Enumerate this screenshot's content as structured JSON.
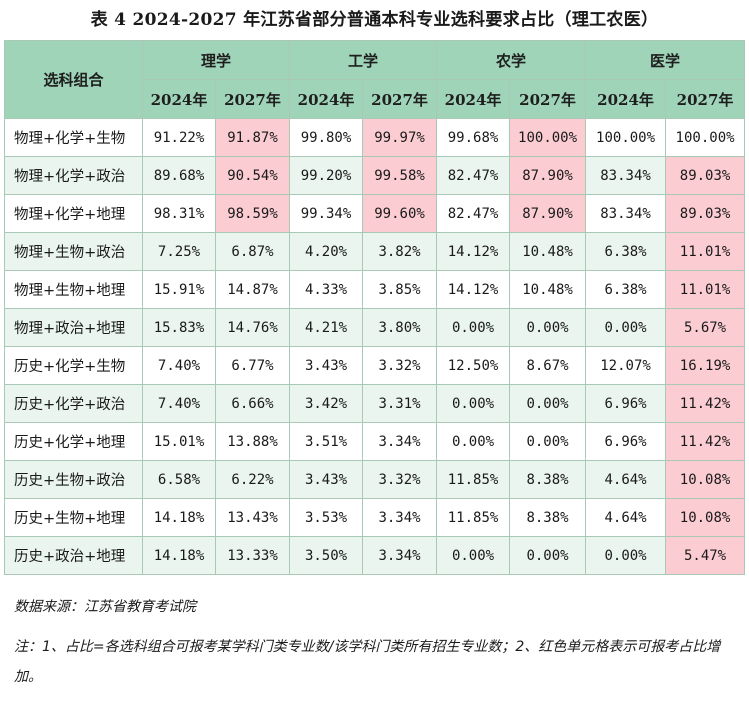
{
  "title": "表 4  2024-2027 年江苏省部分普通本科专业选科要求占比（理工农医）",
  "header": {
    "row_label": "选科组合",
    "groups": [
      "理学",
      "工学",
      "农学",
      "医学"
    ],
    "years": [
      "2024年",
      "2027年"
    ]
  },
  "rows": [
    {
      "label": "物理+化学+生物",
      "values": [
        "91.22%",
        "91.87%",
        "99.80%",
        "99.97%",
        "99.68%",
        "100.00%",
        "100.00%",
        "100.00%"
      ],
      "highlight": [
        false,
        true,
        false,
        true,
        false,
        true,
        false,
        false
      ]
    },
    {
      "label": "物理+化学+政治",
      "values": [
        "89.68%",
        "90.54%",
        "99.20%",
        "99.58%",
        "82.47%",
        "87.90%",
        "83.34%",
        "89.03%"
      ],
      "highlight": [
        false,
        true,
        false,
        true,
        false,
        true,
        false,
        true
      ]
    },
    {
      "label": "物理+化学+地理",
      "values": [
        "98.31%",
        "98.59%",
        "99.34%",
        "99.60%",
        "82.47%",
        "87.90%",
        "83.34%",
        "89.03%"
      ],
      "highlight": [
        false,
        true,
        false,
        true,
        false,
        true,
        false,
        true
      ]
    },
    {
      "label": "物理+生物+政治",
      "values": [
        "7.25%",
        "6.87%",
        "4.20%",
        "3.82%",
        "14.12%",
        "10.48%",
        "6.38%",
        "11.01%"
      ],
      "highlight": [
        false,
        false,
        false,
        false,
        false,
        false,
        false,
        true
      ]
    },
    {
      "label": "物理+生物+地理",
      "values": [
        "15.91%",
        "14.87%",
        "4.33%",
        "3.85%",
        "14.12%",
        "10.48%",
        "6.38%",
        "11.01%"
      ],
      "highlight": [
        false,
        false,
        false,
        false,
        false,
        false,
        false,
        true
      ]
    },
    {
      "label": "物理+政治+地理",
      "values": [
        "15.83%",
        "14.76%",
        "4.21%",
        "3.80%",
        "0.00%",
        "0.00%",
        "0.00%",
        "5.67%"
      ],
      "highlight": [
        false,
        false,
        false,
        false,
        false,
        false,
        false,
        true
      ]
    },
    {
      "label": "历史+化学+生物",
      "values": [
        "7.40%",
        "6.77%",
        "3.43%",
        "3.32%",
        "12.50%",
        "8.67%",
        "12.07%",
        "16.19%"
      ],
      "highlight": [
        false,
        false,
        false,
        false,
        false,
        false,
        false,
        true
      ]
    },
    {
      "label": "历史+化学+政治",
      "values": [
        "7.40%",
        "6.66%",
        "3.42%",
        "3.31%",
        "0.00%",
        "0.00%",
        "6.96%",
        "11.42%"
      ],
      "highlight": [
        false,
        false,
        false,
        false,
        false,
        false,
        false,
        true
      ]
    },
    {
      "label": "历史+化学+地理",
      "values": [
        "15.01%",
        "13.88%",
        "3.51%",
        "3.34%",
        "0.00%",
        "0.00%",
        "6.96%",
        "11.42%"
      ],
      "highlight": [
        false,
        false,
        false,
        false,
        false,
        false,
        false,
        true
      ]
    },
    {
      "label": "历史+生物+政治",
      "values": [
        "6.58%",
        "6.22%",
        "3.43%",
        "3.32%",
        "11.85%",
        "8.38%",
        "4.64%",
        "10.08%"
      ],
      "highlight": [
        false,
        false,
        false,
        false,
        false,
        false,
        false,
        true
      ]
    },
    {
      "label": "历史+生物+地理",
      "values": [
        "14.18%",
        "13.43%",
        "3.53%",
        "3.34%",
        "11.85%",
        "8.38%",
        "4.64%",
        "10.08%"
      ],
      "highlight": [
        false,
        false,
        false,
        false,
        false,
        false,
        false,
        true
      ]
    },
    {
      "label": "历史+政治+地理",
      "values": [
        "14.18%",
        "13.33%",
        "3.50%",
        "3.34%",
        "0.00%",
        "0.00%",
        "0.00%",
        "5.47%"
      ],
      "highlight": [
        false,
        false,
        false,
        false,
        false,
        false,
        false,
        true
      ]
    }
  ],
  "source": "数据来源：江苏省教育考试院",
  "note": "注：1、占比=各选科组合可报考某学科门类专业数/该学科门类所有招生专业数；2、红色单元格表示可报考占比增加。",
  "colors": {
    "header_bg": "#9fd4b9",
    "stripe_bg": "#e9f5ee",
    "highlight_bg": "#fbcdd2",
    "border": "#a9c8b6"
  }
}
